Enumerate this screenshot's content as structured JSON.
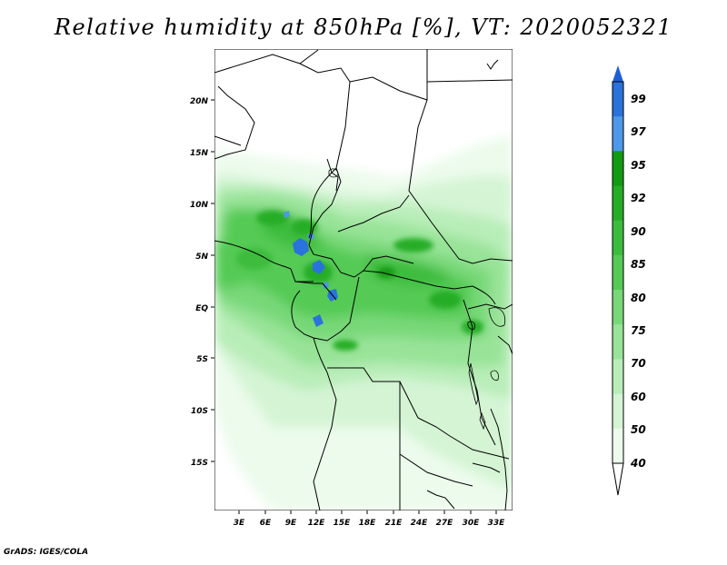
{
  "title": "Relative humidity at 850hPa [%], VT: 2020052321",
  "credit": "GrADS: IGES/COLA",
  "map": {
    "lat_labels": [
      "20N",
      "15N",
      "10N",
      "5N",
      "EQ",
      "5S",
      "10S",
      "15S"
    ],
    "lon_labels": [
      "3E",
      "6E",
      "9E",
      "12E",
      "15E",
      "18E",
      "21E",
      "24E",
      "27E",
      "30E",
      "33E"
    ]
  },
  "colorbar": {
    "levels": [
      "99",
      "97",
      "95",
      "92",
      "90",
      "85",
      "80",
      "75",
      "70",
      "60",
      "50",
      "40"
    ],
    "colors": [
      "#1f5fd6",
      "#2a72dc",
      "#4d98e8",
      "#129a12",
      "#25ad25",
      "#3cbc3c",
      "#55ca55",
      "#78d878",
      "#98e398",
      "#b8edb8",
      "#d4f4d4",
      "#ecfbec"
    ]
  }
}
